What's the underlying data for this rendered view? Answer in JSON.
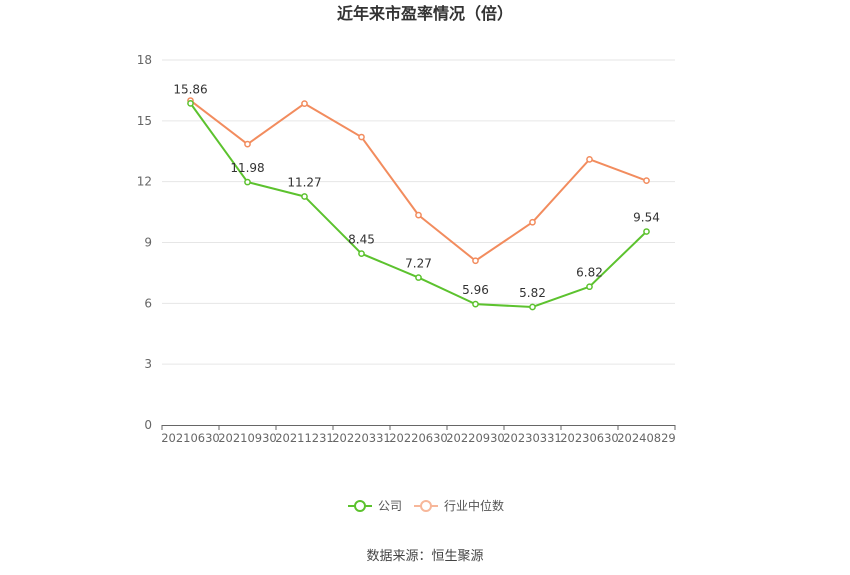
{
  "chart_data": {
    "type": "line",
    "title": "近年来市盈率情况（倍）",
    "x": [
      "20210630",
      "20210930",
      "20211231",
      "20220331",
      "20220630",
      "20220930",
      "20230331",
      "20230630",
      "20240829"
    ],
    "ylim": [
      0,
      18
    ],
    "yticks": [
      0,
      3,
      6,
      9,
      12,
      15,
      18
    ],
    "grid": true,
    "legend_position": "bottom",
    "series": [
      {
        "name": "公司",
        "color": "#5cc22e",
        "values": [
          15.86,
          11.98,
          11.27,
          8.45,
          7.27,
          5.96,
          5.82,
          6.82,
          9.54
        ],
        "data_labels": [
          "15.86",
          "11.98",
          "11.27",
          "8.45",
          "7.27",
          "5.96",
          "5.82",
          "6.82",
          "9.54"
        ]
      },
      {
        "name": "行业中位数",
        "color": "#f28c5e",
        "values": [
          16.0,
          13.85,
          15.85,
          14.2,
          10.35,
          8.1,
          10.0,
          13.1,
          12.05
        ]
      }
    ]
  },
  "source": "数据来源：恒生聚源"
}
